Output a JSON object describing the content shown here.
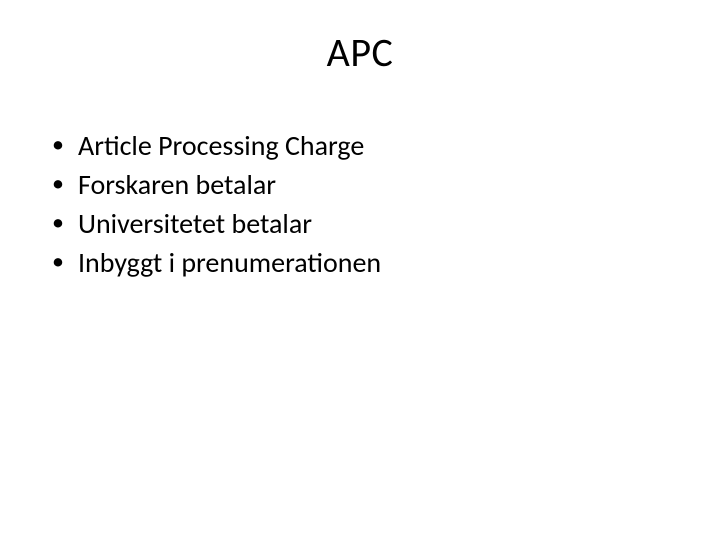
{
  "slide": {
    "title": "APC",
    "bullets": [
      "Article Processing Charge",
      "Forskaren betalar",
      "Universitetet betalar",
      "Inbyggt i prenumerationen"
    ],
    "background_color": "#ffffff",
    "text_color": "#000000",
    "title_fontsize": 40,
    "body_fontsize": 28,
    "font_family": "Calibri"
  }
}
